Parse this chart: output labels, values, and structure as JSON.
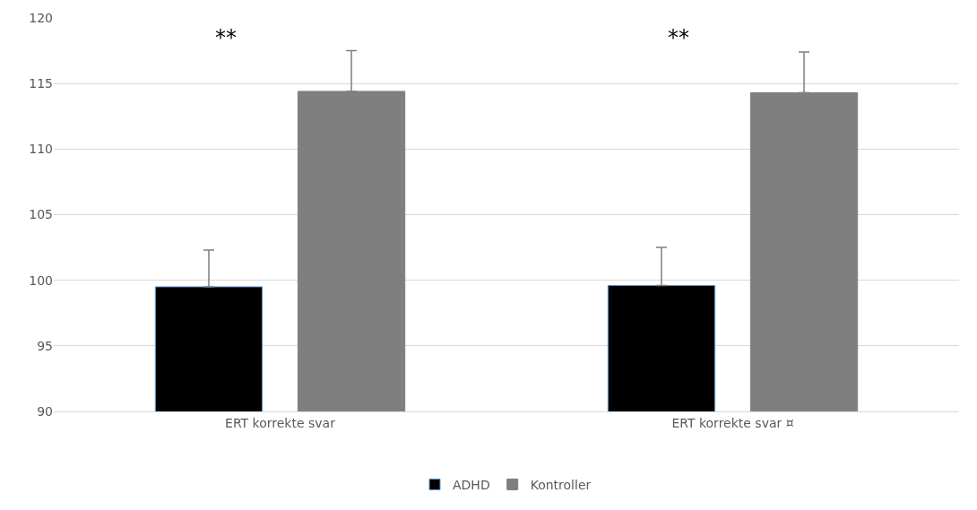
{
  "chart_data": {
    "type": "bar",
    "categories": [
      "ERT korrekte svar",
      "ERT korrekte svar ¤"
    ],
    "series": [
      {
        "name": "ADHD",
        "color": "#000000",
        "values": [
          99.5,
          99.6
        ],
        "errors": [
          [
            99.5,
            102.3
          ],
          [
            99.6,
            102.5
          ]
        ]
      },
      {
        "name": "Kontroller",
        "color": "#7f7f7f",
        "values": [
          114.4,
          114.3
        ],
        "errors": [
          [
            114.4,
            117.5
          ],
          [
            114.3,
            117.4
          ]
        ]
      }
    ],
    "annotations": [
      "**",
      "**"
    ],
    "ylim": [
      90,
      120
    ],
    "yticks": [
      90,
      95,
      100,
      105,
      110,
      115,
      120
    ],
    "grid": "y",
    "legend": "bottom"
  }
}
